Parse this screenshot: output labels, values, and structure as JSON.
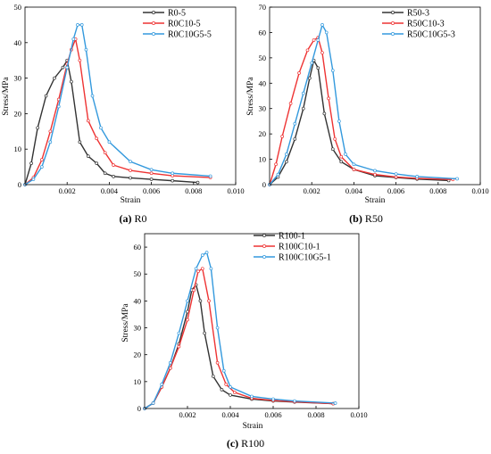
{
  "chart_data": [
    {
      "type": "line",
      "caption_letter": "(a)",
      "caption_name": "R0",
      "xlabel": "Strain",
      "ylabel": "Stress/MPa",
      "xlim": [
        0,
        0.01
      ],
      "ylim": [
        0,
        50
      ],
      "xticks": [
        0.002,
        0.004,
        0.006,
        0.008,
        0.01
      ],
      "xtick_labels": [
        "0.002",
        "0.004",
        "0.006",
        "0.008",
        "0.010"
      ],
      "yticks": [
        0,
        10,
        20,
        30,
        40,
        50
      ],
      "ytick_labels": [
        "0",
        "10",
        "20",
        "30",
        "40",
        "50"
      ],
      "legend_position": "top-right",
      "series": [
        {
          "name": "R0-5",
          "color": "#333333",
          "x": [
            0.0,
            0.0003,
            0.0006,
            0.001,
            0.0014,
            0.0018,
            0.002,
            0.0022,
            0.0026,
            0.003,
            0.0034,
            0.0038,
            0.0042,
            0.005,
            0.006,
            0.007,
            0.0082
          ],
          "y": [
            0,
            6,
            16,
            25,
            30,
            33,
            35,
            29,
            12,
            8,
            6,
            3.2,
            2.3,
            1.9,
            1.5,
            1.1,
            0.6
          ]
        },
        {
          "name": "R0C10-5",
          "color": "#ee3333",
          "x": [
            0.0,
            0.0004,
            0.0008,
            0.0012,
            0.0016,
            0.002,
            0.0022,
            0.0024,
            0.0026,
            0.003,
            0.0034,
            0.0038,
            0.0042,
            0.005,
            0.006,
            0.007,
            0.0088
          ],
          "y": [
            0,
            2,
            7,
            15,
            24,
            34,
            38,
            41,
            35,
            18,
            13,
            9,
            5.5,
            4,
            3.2,
            2.5,
            2
          ]
        },
        {
          "name": "R0C10G5-5",
          "color": "#3399dd",
          "x": [
            0.0,
            0.0004,
            0.0008,
            0.0012,
            0.0016,
            0.002,
            0.0023,
            0.0025,
            0.0027,
            0.0029,
            0.0032,
            0.0036,
            0.004,
            0.005,
            0.006,
            0.007,
            0.0088
          ],
          "y": [
            0,
            1.5,
            5,
            12,
            22,
            33,
            41,
            45,
            45,
            38,
            25,
            16,
            12,
            6.5,
            4.2,
            3.2,
            2.4
          ]
        }
      ]
    },
    {
      "type": "line",
      "caption_letter": "(b)",
      "caption_name": "R50",
      "xlabel": "Strain",
      "ylabel": "Stress/MPa",
      "xlim": [
        0,
        0.01
      ],
      "ylim": [
        0,
        70
      ],
      "xticks": [
        0.002,
        0.004,
        0.006,
        0.008,
        0.01
      ],
      "xtick_labels": [
        "0.002",
        "0.004",
        "0.006",
        "0.008",
        "0.010"
      ],
      "yticks": [
        0,
        10,
        20,
        30,
        40,
        50,
        60,
        70
      ],
      "ytick_labels": [
        "0",
        "10",
        "20",
        "30",
        "40",
        "50",
        "60",
        "70"
      ],
      "legend_position": "top-right",
      "series": [
        {
          "name": "R50-3",
          "color": "#333333",
          "x": [
            0.0,
            0.0004,
            0.0008,
            0.0012,
            0.0016,
            0.0019,
            0.0021,
            0.0023,
            0.0026,
            0.003,
            0.0034,
            0.004,
            0.005,
            0.006,
            0.007,
            0.0085
          ],
          "y": [
            0,
            3,
            9,
            18,
            30,
            42,
            49,
            46,
            28,
            14,
            9,
            6,
            3.5,
            2.8,
            2.2,
            1.6
          ]
        },
        {
          "name": "R50C10-3",
          "color": "#ee3333",
          "x": [
            0.0,
            0.0003,
            0.0006,
            0.001,
            0.0014,
            0.0018,
            0.0021,
            0.0023,
            0.0025,
            0.0028,
            0.0031,
            0.0034,
            0.004,
            0.005,
            0.006,
            0.007,
            0.0087
          ],
          "y": [
            0,
            8,
            19,
            32,
            44,
            53,
            57,
            58,
            52,
            34,
            18,
            11,
            6,
            4,
            3,
            2.5,
            2
          ]
        },
        {
          "name": "R50C10G5-3",
          "color": "#3399dd",
          "x": [
            0.0,
            0.0004,
            0.0008,
            0.0012,
            0.0016,
            0.002,
            0.0023,
            0.0025,
            0.0027,
            0.003,
            0.0033,
            0.0036,
            0.004,
            0.005,
            0.006,
            0.007,
            0.0089
          ],
          "y": [
            0,
            4,
            12,
            24,
            36,
            48,
            57,
            63,
            60,
            45,
            25,
            12,
            8,
            5.5,
            4.2,
            3.2,
            2.3
          ]
        }
      ]
    },
    {
      "type": "line",
      "caption_letter": "(c)",
      "caption_name": "R100",
      "xlabel": "Strain",
      "ylabel": "Stress/MPa",
      "xlim": [
        0,
        0.01
      ],
      "ylim": [
        0,
        65
      ],
      "xticks": [
        0.002,
        0.004,
        0.006,
        0.008,
        0.01
      ],
      "xtick_labels": [
        "0.002",
        "0.004",
        "0.006",
        "0.008",
        "0.010"
      ],
      "yticks": [
        0,
        10,
        20,
        30,
        40,
        50,
        60
      ],
      "ytick_labels": [
        "0",
        "10",
        "20",
        "30",
        "40",
        "50",
        "60"
      ],
      "legend_position": "top-right",
      "series": [
        {
          "name": "R100-1",
          "color": "#333333",
          "x": [
            0.0,
            0.0004,
            0.0008,
            0.0012,
            0.0016,
            0.002,
            0.0022,
            0.0024,
            0.0026,
            0.0028,
            0.0032,
            0.0036,
            0.004,
            0.005,
            0.006,
            0.007,
            0.0088
          ],
          "y": [
            0,
            2,
            8,
            15,
            24,
            36,
            44,
            46,
            40,
            28,
            12,
            7,
            5,
            3.5,
            2.8,
            2.4,
            1.8
          ]
        },
        {
          "name": "R100C10-1",
          "color": "#ee3333",
          "x": [
            0.0,
            0.0004,
            0.0008,
            0.0012,
            0.0016,
            0.002,
            0.0023,
            0.0025,
            0.0027,
            0.003,
            0.0034,
            0.0038,
            0.0042,
            0.005,
            0.006,
            0.007,
            0.0088
          ],
          "y": [
            0,
            2,
            8,
            15,
            23,
            33,
            44,
            51,
            52,
            40,
            17,
            9,
            6,
            3.8,
            3,
            2.5,
            1.8
          ]
        },
        {
          "name": "R100C10G5-1",
          "color": "#3399dd",
          "x": [
            0.0,
            0.0004,
            0.0008,
            0.0012,
            0.0016,
            0.002,
            0.0024,
            0.0027,
            0.0029,
            0.0031,
            0.0034,
            0.0037,
            0.004,
            0.005,
            0.006,
            0.007,
            0.0089
          ],
          "y": [
            0,
            2,
            9,
            17,
            28,
            40,
            52,
            57,
            58,
            52,
            30,
            14,
            8,
            4.5,
            3.5,
            2.8,
            2
          ]
        }
      ]
    }
  ]
}
